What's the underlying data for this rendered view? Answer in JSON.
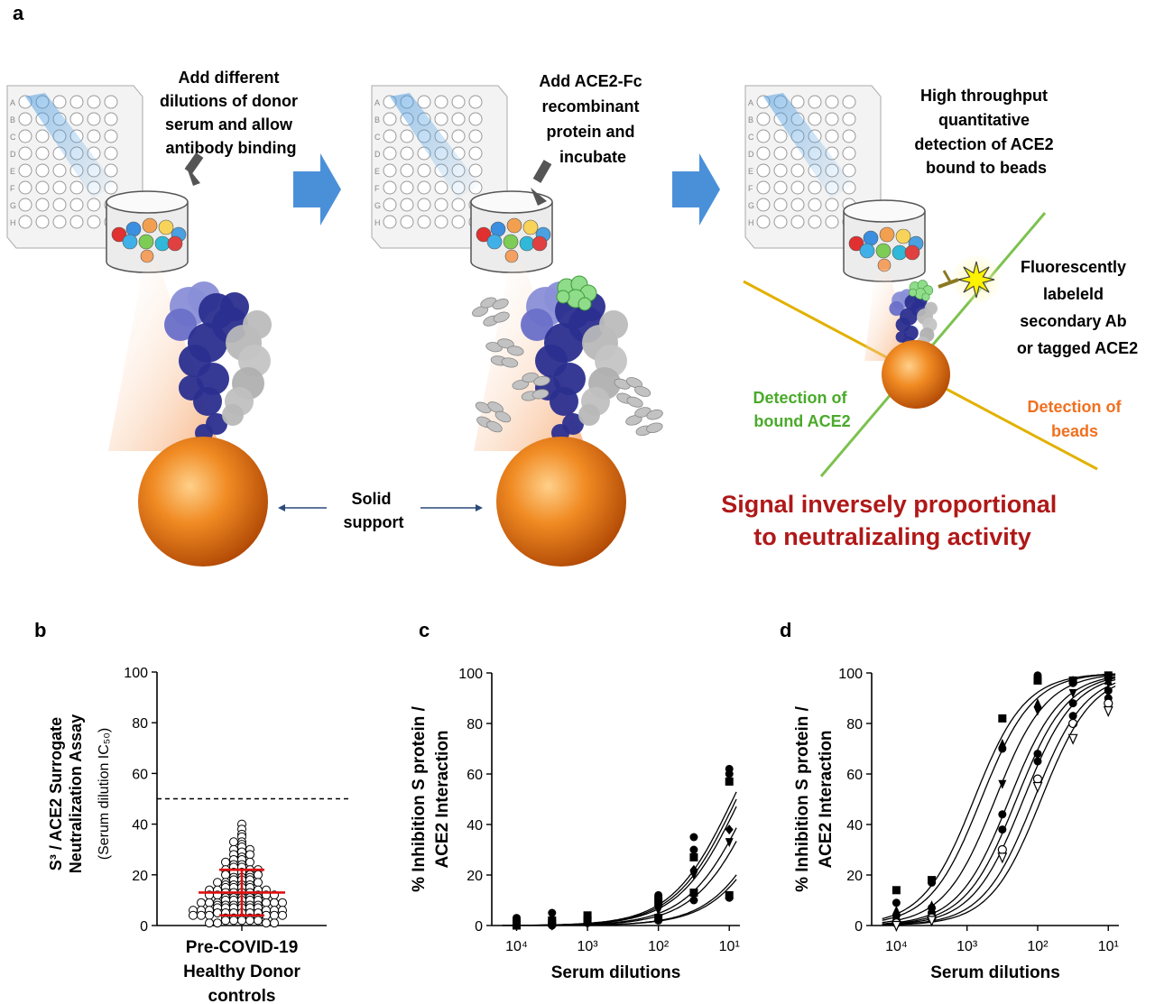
{
  "panel_letters": {
    "a": "a",
    "b": "b",
    "c": "c",
    "d": "d"
  },
  "colors": {
    "arrow_blue": "#4a90d9",
    "bead_orange": "#e8761a",
    "spike_navy": "#2b2f8f",
    "spike_light": "#8a8fd8",
    "detect_green": "#6fc04b",
    "detect_yellow": "#e5b400",
    "red_text": "#b01818",
    "red_errorbar": "#e01010",
    "detect_orange_text": "#f07020",
    "detect_green_text": "#4aaa2a"
  },
  "panel_a": {
    "plate_rows": [
      "A",
      "B",
      "C",
      "D",
      "E",
      "F",
      "G",
      "H"
    ],
    "step1_text": [
      "Add different",
      "dilutions of donor",
      "serum and allow",
      "antibody binding"
    ],
    "step2_text": [
      "Add ACE2-Fc",
      "recombinant",
      "protein and",
      "incubate"
    ],
    "step3_text": [
      "High throughput",
      "quantitative",
      "detection of ACE2",
      "bound to beads"
    ],
    "fluor_text": [
      "Fluorescently",
      "labeleld",
      "secondary Ab",
      "or tagged ACE2"
    ],
    "solid_support": [
      "Solid",
      "support"
    ],
    "detect_ace2": [
      "Detection of",
      "bound ACE2"
    ],
    "detect_beads": [
      "Detection of",
      "beads"
    ],
    "signal_text": [
      "Signal inversely proportional",
      "to neutralizaling activity"
    ],
    "icons": [
      "well-plate-icon",
      "bead-well-icon",
      "spike-protein-icon",
      "ace2-protein-icon",
      "antibody-icon",
      "star-fluorescence-icon",
      "bead-sphere-icon",
      "step-arrow-icon"
    ]
  },
  "chart_data": [
    {
      "type": "scatter",
      "panel": "b",
      "ylabel_lines": [
        "S³ / ACE2 Surrogate",
        "Neutralization Assay"
      ],
      "ylabel_sub": "(Serum dilution IC₅₀)",
      "xlabel_lines": [
        "Pre-COVID-19",
        "Healthy Donor",
        "controls"
      ],
      "ylim": [
        0,
        100
      ],
      "yticks": [
        "0",
        "20",
        "40",
        "60",
        "80",
        "100"
      ],
      "threshold": 50,
      "mean": 13,
      "sd": [
        4,
        22
      ],
      "points": [
        40,
        38,
        36,
        35,
        33,
        33,
        32,
        31,
        30,
        30,
        29,
        28,
        28,
        27,
        26,
        26,
        25,
        25,
        24,
        24,
        23,
        23,
        22,
        22,
        22,
        21,
        21,
        20,
        20,
        20,
        19,
        19,
        19,
        18,
        18,
        18,
        17,
        17,
        17,
        16,
        16,
        16,
        16,
        15,
        15,
        15,
        15,
        14,
        14,
        14,
        14,
        13,
        13,
        13,
        13,
        12,
        12,
        12,
        12,
        12,
        11,
        11,
        11,
        11,
        11,
        10,
        10,
        10,
        10,
        10,
        9,
        9,
        9,
        9,
        9,
        9,
        8,
        8,
        8,
        8,
        8,
        8,
        7,
        7,
        7,
        7,
        7,
        7,
        6,
        6,
        6,
        6,
        6,
        6,
        5,
        5,
        5,
        5,
        5,
        5,
        4,
        4,
        4,
        4,
        4,
        4,
        3,
        3,
        3,
        3,
        3,
        2,
        2,
        2,
        2,
        2,
        1,
        1,
        1,
        1
      ]
    },
    {
      "type": "line",
      "panel": "c",
      "ylabel_lines": [
        "% Inhibition S protein /",
        "ACE2 Interaction"
      ],
      "xlabel": "Serum dilutions",
      "ylim": [
        0,
        100
      ],
      "yticks": [
        "0",
        "20",
        "40",
        "60",
        "80",
        "100"
      ],
      "xtick_labels": [
        "10⁴",
        "10³",
        "10²",
        "10¹"
      ],
      "x_log10": [
        -4,
        -3,
        -2,
        -1
      ],
      "series": [
        {
          "logIC50": -0.85,
          "hill": 1.0,
          "marker": "circle",
          "points": [
            [
              -4,
              3
            ],
            [
              -3.5,
              5
            ],
            [
              -3,
              2
            ],
            [
              -2,
              8
            ],
            [
              -1.5,
              30
            ],
            [
              -1,
              62
            ]
          ]
        },
        {
          "logIC50": -0.9,
          "hill": 1.0,
          "marker": "square",
          "points": [
            [
              -4,
              1
            ],
            [
              -3.5,
              2
            ],
            [
              -3,
              4
            ],
            [
              -2,
              10
            ],
            [
              -1.5,
              27
            ],
            [
              -1,
              57
            ]
          ]
        },
        {
          "logIC50": -0.95,
          "hill": 1.0,
          "marker": "circle",
          "points": [
            [
              -4,
              0
            ],
            [
              -3.5,
              1
            ],
            [
              -3,
              3
            ],
            [
              -2,
              12
            ],
            [
              -1.5,
              35
            ],
            [
              -1,
              60
            ]
          ]
        },
        {
          "logIC50": -0.7,
          "hill": 1.0,
          "marker": "diamond",
          "points": [
            [
              -4,
              0
            ],
            [
              -3.5,
              0
            ],
            [
              -3,
              2
            ],
            [
              -2,
              8
            ],
            [
              -1.5,
              22
            ],
            [
              -1,
              38
            ]
          ]
        },
        {
          "logIC50": -0.6,
          "hill": 1.0,
          "marker": "triangle-down",
          "points": [
            [
              -4,
              1
            ],
            [
              -3.5,
              0
            ],
            [
              -3,
              1
            ],
            [
              -2,
              6
            ],
            [
              -1.5,
              20
            ],
            [
              -1,
              33
            ]
          ]
        },
        {
          "logIC50": -0.3,
          "hill": 1.0,
          "marker": "square",
          "points": [
            [
              -4,
              0
            ],
            [
              -3.5,
              1
            ],
            [
              -3,
              2
            ],
            [
              -2,
              3
            ],
            [
              -1.5,
              13
            ],
            [
              -1,
              12
            ]
          ]
        },
        {
          "logIC50": -0.25,
          "hill": 1.0,
          "marker": "circle",
          "points": [
            [
              -4,
              2
            ],
            [
              -3.5,
              0
            ],
            [
              -3,
              1
            ],
            [
              -2,
              2
            ],
            [
              -1.5,
              10
            ],
            [
              -1,
              11
            ]
          ]
        }
      ]
    },
    {
      "type": "line",
      "panel": "d",
      "ylabel_lines": [
        "% Inhibition S protein /",
        "ACE2 Interaction"
      ],
      "xlabel": "Serum dilutions",
      "ylim": [
        0,
        100
      ],
      "yticks": [
        "0",
        "20",
        "40",
        "60",
        "80",
        "100"
      ],
      "xtick_labels": [
        "10⁴",
        "10³",
        "10²",
        "10¹"
      ],
      "x_log10": [
        -4,
        -3,
        -2,
        -1
      ],
      "series": [
        {
          "logIC50": -2.9,
          "hill": 1.2,
          "marker": "square",
          "points": [
            [
              -4,
              14
            ],
            [
              -3.5,
              18
            ],
            [
              -2.5,
              82
            ],
            [
              -2,
              97
            ],
            [
              -1.5,
              97
            ],
            [
              -1,
              99
            ]
          ]
        },
        {
          "logIC50": -2.8,
          "hill": 1.2,
          "marker": "circle",
          "points": [
            [
              -4,
              9
            ],
            [
              -3.5,
              17
            ],
            [
              -2.5,
              70
            ],
            [
              -2,
              99
            ],
            [
              -1.5,
              96
            ],
            [
              -1,
              98
            ]
          ]
        },
        {
          "logIC50": -2.6,
          "hill": 1.2,
          "marker": "triangle",
          "points": [
            [
              -4,
              6
            ],
            [
              -3.5,
              8
            ],
            [
              -2.5,
              72
            ],
            [
              -2,
              88
            ],
            [
              -1.5,
              97
            ],
            [
              -1,
              97
            ]
          ]
        },
        {
          "logIC50": -2.4,
          "hill": 1.2,
          "marker": "triangle-down",
          "points": [
            [
              -4,
              3
            ],
            [
              -3.5,
              4
            ],
            [
              -2.5,
              56
            ],
            [
              -2,
              85
            ],
            [
              -1.5,
              92
            ],
            [
              -1,
              96
            ]
          ]
        },
        {
          "logIC50": -2.3,
          "hill": 1.2,
          "marker": "circle",
          "points": [
            [
              -4,
              4
            ],
            [
              -3.5,
              7
            ],
            [
              -2.5,
              44
            ],
            [
              -2,
              68
            ],
            [
              -1.5,
              88
            ],
            [
              -1,
              93
            ]
          ]
        },
        {
          "logIC50": -2.2,
          "hill": 1.2,
          "marker": "circle",
          "points": [
            [
              -4,
              2
            ],
            [
              -3.5,
              5
            ],
            [
              -2.5,
              38
            ],
            [
              -2,
              65
            ],
            [
              -1.5,
              83
            ],
            [
              -1,
              90
            ]
          ]
        },
        {
          "logIC50": -2.05,
          "hill": 1.2,
          "marker": "circle-open",
          "points": [
            [
              -4,
              1
            ],
            [
              -3.5,
              3
            ],
            [
              -2.5,
              30
            ],
            [
              -2,
              58
            ],
            [
              -1.5,
              80
            ],
            [
              -1,
              88
            ]
          ]
        },
        {
          "logIC50": -1.95,
          "hill": 1.2,
          "marker": "triangle-open",
          "points": [
            [
              -4,
              0
            ],
            [
              -3.5,
              2
            ],
            [
              -2.5,
              27
            ],
            [
              -2,
              55
            ],
            [
              -1.5,
              74
            ],
            [
              -1,
              85
            ]
          ]
        }
      ]
    }
  ]
}
